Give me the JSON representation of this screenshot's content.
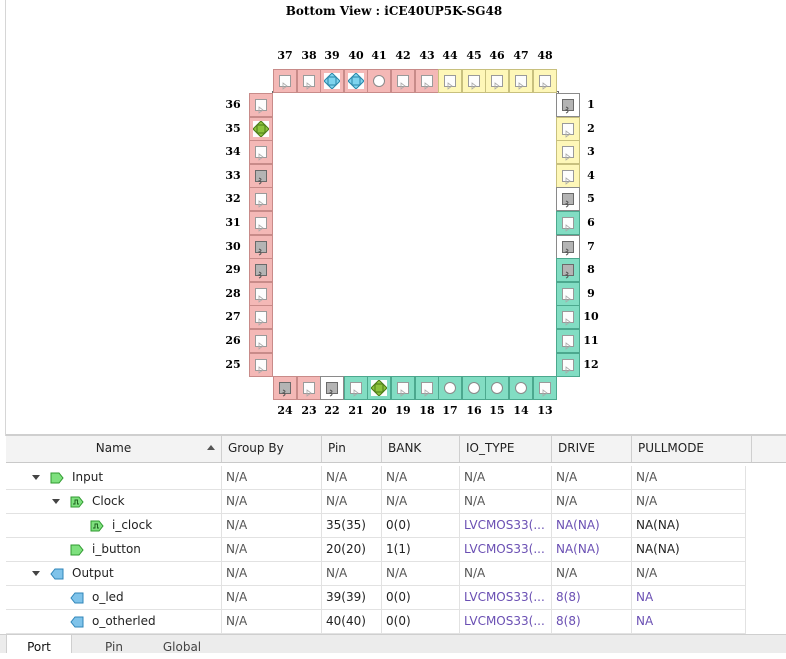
{
  "package_view": {
    "title": "Bottom View : iCE40UP5K-SG48",
    "colors": {
      "bank0": "#f4b8b6",
      "bank1": "#82ddc3",
      "bank2": "#fef7b8",
      "special": "#ffffff"
    },
    "top_pins": [
      {
        "num": "37",
        "bank": "red",
        "icon": "io"
      },
      {
        "num": "38",
        "bank": "red",
        "icon": "io"
      },
      {
        "num": "39",
        "bank": "red",
        "icon": "output-assigned"
      },
      {
        "num": "40",
        "bank": "red",
        "icon": "output-assigned"
      },
      {
        "num": "41",
        "bank": "red",
        "icon": "circle"
      },
      {
        "num": "42",
        "bank": "red",
        "icon": "io"
      },
      {
        "num": "43",
        "bank": "red",
        "icon": "io"
      },
      {
        "num": "44",
        "bank": "yellow",
        "icon": "io"
      },
      {
        "num": "45",
        "bank": "yellow",
        "icon": "io"
      },
      {
        "num": "46",
        "bank": "yellow",
        "icon": "io"
      },
      {
        "num": "47",
        "bank": "yellow",
        "icon": "io"
      },
      {
        "num": "48",
        "bank": "yellow",
        "icon": "io"
      }
    ],
    "left_pins": [
      {
        "num": "36",
        "bank": "red",
        "icon": "io"
      },
      {
        "num": "35",
        "bank": "red",
        "icon": "input-assigned"
      },
      {
        "num": "34",
        "bank": "red",
        "icon": "io"
      },
      {
        "num": "33",
        "bank": "red",
        "icon": "gray"
      },
      {
        "num": "32",
        "bank": "red",
        "icon": "io"
      },
      {
        "num": "31",
        "bank": "red",
        "icon": "io"
      },
      {
        "num": "30",
        "bank": "red",
        "icon": "gray"
      },
      {
        "num": "29",
        "bank": "red",
        "icon": "gray"
      },
      {
        "num": "28",
        "bank": "red",
        "icon": "io"
      },
      {
        "num": "27",
        "bank": "red",
        "icon": "io"
      },
      {
        "num": "26",
        "bank": "red",
        "icon": "io"
      },
      {
        "num": "25",
        "bank": "red",
        "icon": "io"
      }
    ],
    "right_pins": [
      {
        "num": "1",
        "bank": "white",
        "icon": "gray"
      },
      {
        "num": "2",
        "bank": "yellow",
        "icon": "io"
      },
      {
        "num": "3",
        "bank": "yellow",
        "icon": "io"
      },
      {
        "num": "4",
        "bank": "yellow",
        "icon": "io"
      },
      {
        "num": "5",
        "bank": "white",
        "icon": "gray"
      },
      {
        "num": "6",
        "bank": "teal",
        "icon": "io"
      },
      {
        "num": "7",
        "bank": "white",
        "icon": "gray"
      },
      {
        "num": "8",
        "bank": "teal",
        "icon": "gray"
      },
      {
        "num": "9",
        "bank": "teal",
        "icon": "io"
      },
      {
        "num": "10",
        "bank": "teal",
        "icon": "io"
      },
      {
        "num": "11",
        "bank": "teal",
        "icon": "io"
      },
      {
        "num": "12",
        "bank": "teal",
        "icon": "io"
      }
    ],
    "bottom_pins": [
      {
        "num": "24",
        "bank": "red",
        "icon": "gray"
      },
      {
        "num": "23",
        "bank": "red",
        "icon": "io"
      },
      {
        "num": "22",
        "bank": "white",
        "icon": "gray"
      },
      {
        "num": "21",
        "bank": "teal",
        "icon": "io"
      },
      {
        "num": "20",
        "bank": "teal",
        "icon": "input-assigned"
      },
      {
        "num": "19",
        "bank": "teal",
        "icon": "io"
      },
      {
        "num": "18",
        "bank": "teal",
        "icon": "io"
      },
      {
        "num": "17",
        "bank": "teal",
        "icon": "circle"
      },
      {
        "num": "16",
        "bank": "teal",
        "icon": "circle"
      },
      {
        "num": "15",
        "bank": "teal",
        "icon": "circle"
      },
      {
        "num": "14",
        "bank": "teal",
        "icon": "circle"
      },
      {
        "num": "13",
        "bank": "teal",
        "icon": "io"
      }
    ]
  },
  "table": {
    "headers": [
      "Name",
      "Group By",
      "Pin",
      "BANK",
      "IO_TYPE",
      "DRIVE",
      "PULLMODE"
    ],
    "rows": [
      {
        "level": 0,
        "expand": "open",
        "icon": "input",
        "name": "Input",
        "group": "N/A",
        "pin": "N/A",
        "bank": "N/A",
        "io_type": "N/A",
        "drive": "N/A",
        "pull": "N/A",
        "io_link": false,
        "drive_link": false,
        "pull_link": false
      },
      {
        "level": 1,
        "expand": "open",
        "icon": "clock",
        "name": "Clock",
        "group": "N/A",
        "pin": "N/A",
        "bank": "N/A",
        "io_type": "N/A",
        "drive": "N/A",
        "pull": "N/A",
        "io_link": false,
        "drive_link": false,
        "pull_link": false
      },
      {
        "level": 2,
        "expand": "none",
        "icon": "clock",
        "name": "i_clock",
        "group": "N/A",
        "pin": "35(35)",
        "bank": "0(0)",
        "io_type": "LVCMOS33(...",
        "drive": "NA(NA)",
        "pull": "NA(NA)",
        "io_link": true,
        "drive_link": true,
        "pull_link": false
      },
      {
        "level": 1,
        "expand": "none",
        "icon": "input",
        "name": "i_button",
        "group": "N/A",
        "pin": "20(20)",
        "bank": "1(1)",
        "io_type": "LVCMOS33(...",
        "drive": "NA(NA)",
        "pull": "NA(NA)",
        "io_link": true,
        "drive_link": true,
        "pull_link": false
      },
      {
        "level": 0,
        "expand": "open",
        "icon": "output",
        "name": "Output",
        "group": "N/A",
        "pin": "N/A",
        "bank": "N/A",
        "io_type": "N/A",
        "drive": "N/A",
        "pull": "N/A",
        "io_link": false,
        "drive_link": false,
        "pull_link": false
      },
      {
        "level": 1,
        "expand": "none",
        "icon": "output",
        "name": "o_led",
        "group": "N/A",
        "pin": "39(39)",
        "bank": "0(0)",
        "io_type": "LVCMOS33(...",
        "drive": "8(8)",
        "pull": "NA",
        "io_link": true,
        "drive_link": true,
        "pull_link": true
      },
      {
        "level": 1,
        "expand": "none",
        "icon": "output",
        "name": "o_otherled",
        "group": "N/A",
        "pin": "40(40)",
        "bank": "0(0)",
        "io_type": "LVCMOS33(...",
        "drive": "8(8)",
        "pull": "NA",
        "io_link": true,
        "drive_link": true,
        "pull_link": true
      }
    ]
  },
  "tabs": [
    {
      "label": "Port",
      "active": true
    },
    {
      "label": "Pin",
      "active": false
    },
    {
      "label": "Global",
      "active": false
    }
  ]
}
